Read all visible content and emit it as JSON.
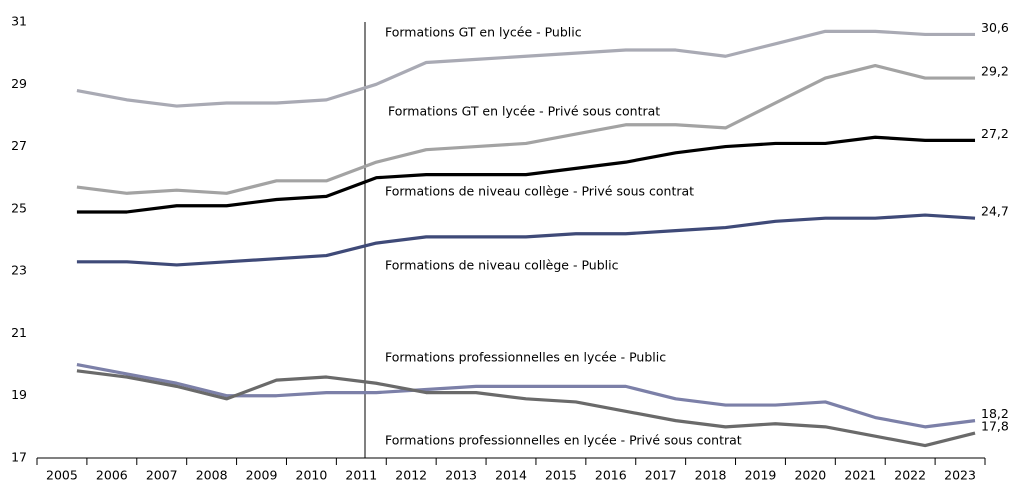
{
  "chart_data": {
    "type": "line",
    "categories": [
      "2005",
      "2006",
      "2007",
      "2008",
      "2009",
      "2010",
      "2011",
      "2012",
      "2013",
      "2014",
      "2015",
      "2016",
      "2017",
      "2018",
      "2019",
      "2020",
      "2021",
      "2022",
      "2023"
    ],
    "ylim": [
      17,
      31
    ],
    "yticks": [
      17,
      19,
      21,
      23,
      25,
      27,
      29,
      31
    ],
    "grid": false,
    "series": [
      {
        "name": "Formations GT en lycée - Public",
        "color": "#a9aab4",
        "values": [
          28.8,
          28.5,
          28.3,
          28.4,
          28.4,
          28.5,
          29.0,
          29.7,
          29.8,
          29.9,
          30.0,
          30.1,
          30.1,
          29.9,
          30.3,
          30.7,
          30.7,
          30.6,
          30.6
        ],
        "value_labels": [
          null,
          null,
          null,
          null,
          null,
          null,
          null,
          null,
          null,
          null,
          null,
          null,
          null,
          null,
          null,
          null,
          null,
          null,
          "30,6"
        ]
      },
      {
        "name": "Formations GT en lycée - Privé sous contrat",
        "color": "#a3a3a3",
        "values": [
          25.7,
          25.5,
          25.6,
          25.5,
          25.9,
          25.9,
          26.5,
          26.9,
          27.0,
          27.1,
          27.4,
          27.7,
          27.7,
          27.6,
          28.4,
          29.2,
          29.6,
          29.2,
          29.2
        ],
        "value_labels": [
          null,
          null,
          null,
          null,
          null,
          null,
          null,
          null,
          null,
          null,
          null,
          null,
          null,
          null,
          null,
          null,
          null,
          null,
          "29,2"
        ]
      },
      {
        "name": "Formations de niveau collège - Privé sous contrat",
        "color": "#000000",
        "values": [
          24.9,
          24.9,
          25.1,
          25.1,
          25.3,
          25.4,
          26.0,
          26.1,
          26.1,
          26.1,
          26.3,
          26.5,
          26.8,
          27.0,
          27.1,
          27.1,
          27.3,
          27.2,
          27.2
        ],
        "value_labels": [
          null,
          null,
          null,
          null,
          null,
          null,
          null,
          null,
          null,
          null,
          null,
          null,
          null,
          null,
          null,
          null,
          null,
          null,
          "27,2"
        ]
      },
      {
        "name": "Formations de niveau collège - Public",
        "color": "#3f4a78",
        "values": [
          23.3,
          23.3,
          23.2,
          23.3,
          23.4,
          23.5,
          23.9,
          24.1,
          24.1,
          24.1,
          24.2,
          24.2,
          24.3,
          24.4,
          24.6,
          24.7,
          24.7,
          24.8,
          24.7
        ],
        "value_labels": [
          null,
          null,
          null,
          null,
          null,
          null,
          null,
          null,
          null,
          null,
          null,
          null,
          null,
          null,
          null,
          null,
          null,
          null,
          "24,7"
        ]
      },
      {
        "name": "Formations professionnelles en lycée - Public",
        "color": "#7c80a8",
        "values": [
          20.0,
          19.7,
          19.4,
          19.0,
          19.0,
          19.1,
          19.1,
          19.2,
          19.3,
          19.3,
          19.3,
          19.3,
          18.9,
          18.7,
          18.7,
          18.8,
          18.3,
          18.0,
          18.2
        ],
        "value_labels": [
          null,
          null,
          null,
          null,
          null,
          null,
          null,
          null,
          null,
          null,
          null,
          null,
          null,
          null,
          null,
          null,
          null,
          null,
          "18,2"
        ]
      },
      {
        "name": "Formations professionnelles en lycée - Privé sous contrat",
        "color": "#6a6a6a",
        "values": [
          19.8,
          19.6,
          19.3,
          18.9,
          19.5,
          19.6,
          19.4,
          19.1,
          19.1,
          18.9,
          18.8,
          18.5,
          18.2,
          18.0,
          18.1,
          18.0,
          17.7,
          17.4,
          17.8
        ],
        "value_labels": [
          null,
          null,
          null,
          null,
          null,
          null,
          null,
          null,
          null,
          null,
          null,
          null,
          null,
          null,
          null,
          null,
          null,
          null,
          "17,8"
        ]
      }
    ]
  }
}
